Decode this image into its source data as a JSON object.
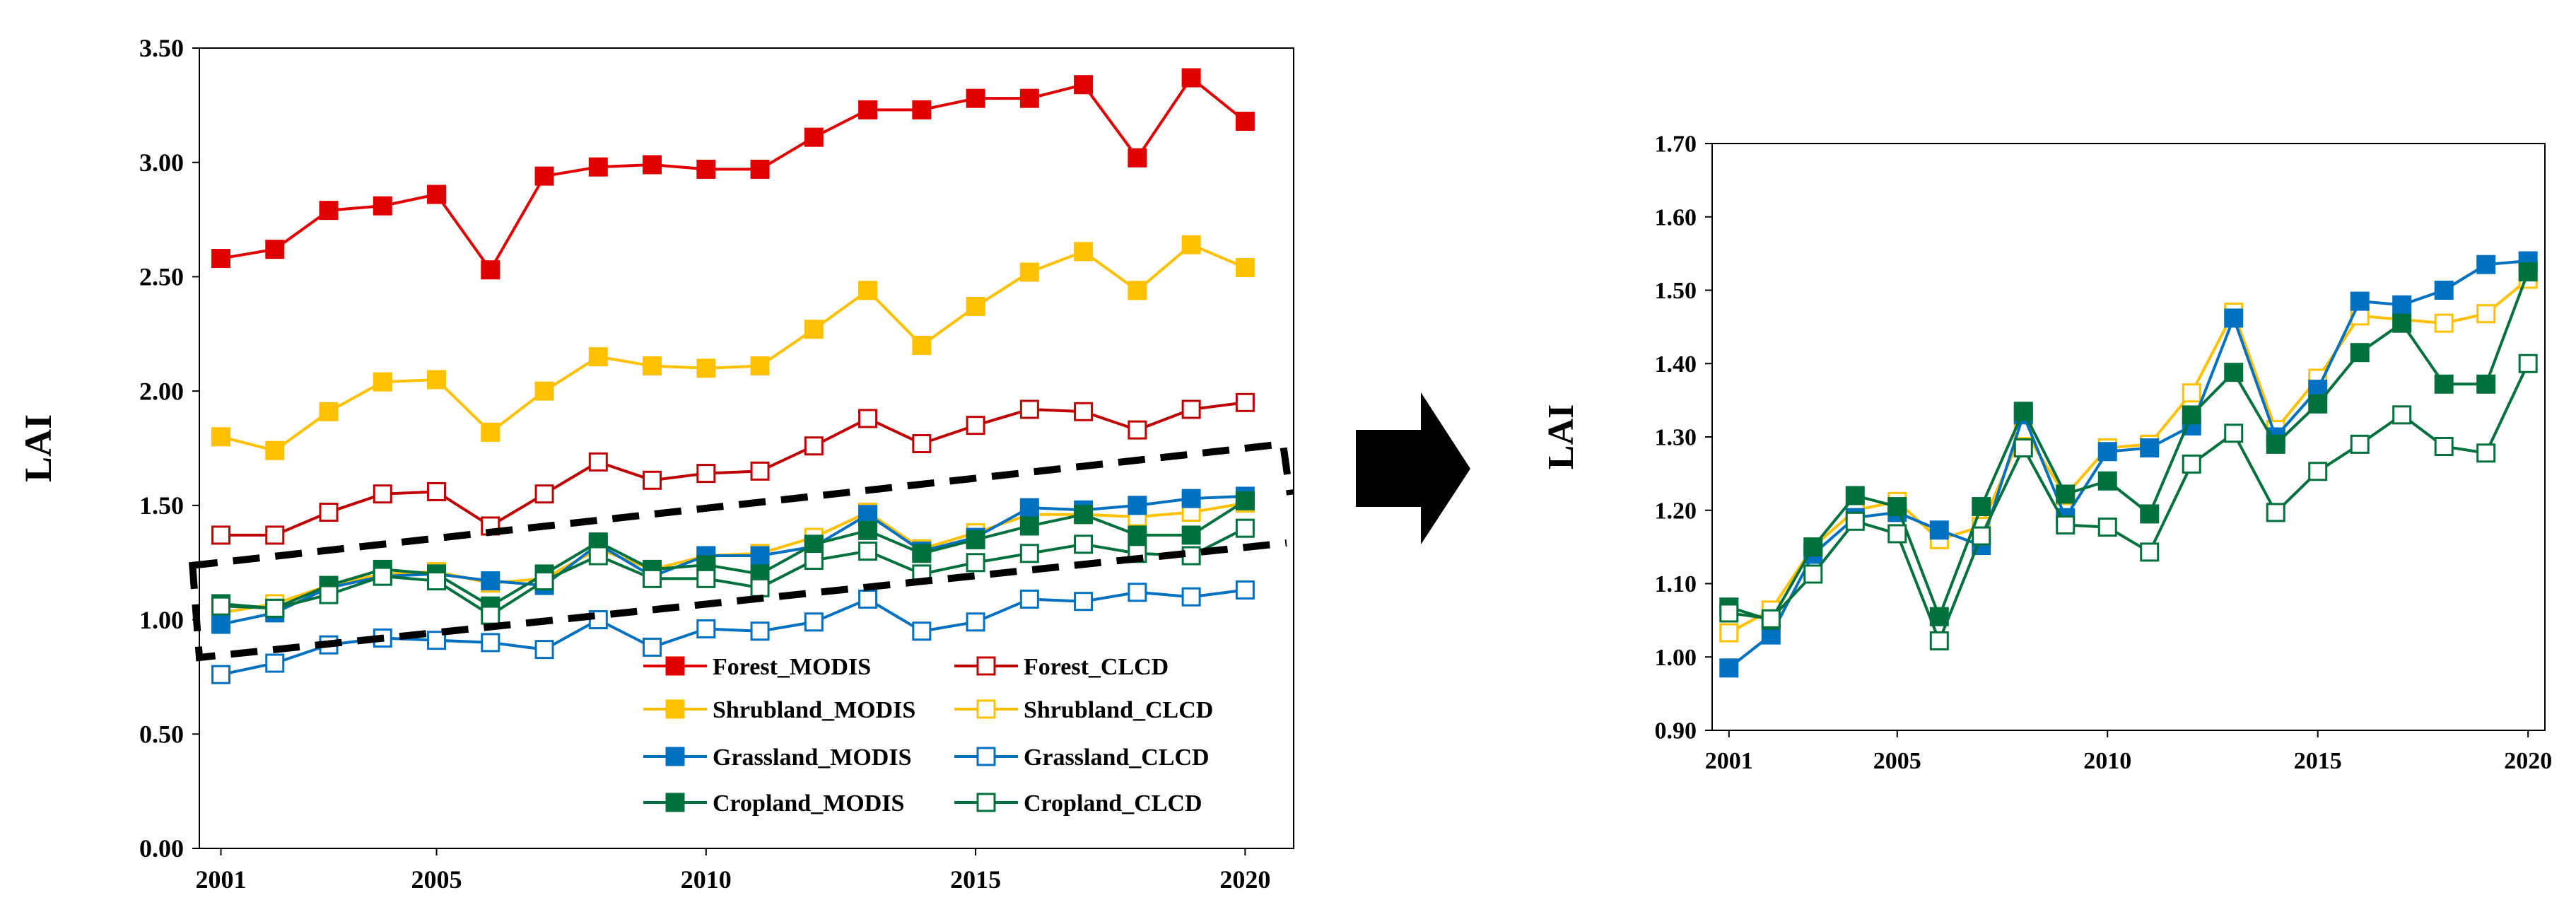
{
  "arrow": "right-arrow-icon",
  "chart_data": [
    {
      "type": "line",
      "title": "",
      "xlabel": "",
      "ylabel": "LAI",
      "x": [
        2001,
        2002,
        2003,
        2004,
        2005,
        2006,
        2007,
        2008,
        2009,
        2010,
        2011,
        2012,
        2013,
        2014,
        2015,
        2016,
        2017,
        2018,
        2019,
        2020
      ],
      "xticks": [
        "2001",
        "2005",
        "2010",
        "2015",
        "2020"
      ],
      "yticks": [
        "0.00",
        "0.50",
        "1.00",
        "1.50",
        "2.00",
        "2.50",
        "3.00",
        "3.50"
      ],
      "ylim": [
        0,
        3.5
      ],
      "xlim": [
        2000.6,
        2020.9
      ],
      "legend_position": "lower-right",
      "grid": false,
      "series": [
        {
          "name": "Forest_MODIS",
          "color": "#e00000",
          "filled": true,
          "values": [
            2.58,
            2.62,
            2.79,
            2.81,
            2.86,
            2.53,
            2.94,
            2.98,
            2.99,
            2.97,
            2.97,
            3.11,
            3.23,
            3.23,
            3.28,
            3.28,
            3.34,
            3.02,
            3.37,
            3.18
          ]
        },
        {
          "name": "Forest_CLCD",
          "color": "#c00000",
          "filled": false,
          "values": [
            1.37,
            1.37,
            1.47,
            1.55,
            1.56,
            1.41,
            1.55,
            1.69,
            1.61,
            1.64,
            1.65,
            1.76,
            1.88,
            1.77,
            1.85,
            1.92,
            1.91,
            1.83,
            1.92,
            1.95
          ]
        },
        {
          "name": "Shrubland_MODIS",
          "color": "#ffc000",
          "filled": true,
          "values": [
            1.8,
            1.74,
            1.91,
            2.04,
            2.05,
            1.82,
            2.0,
            2.15,
            2.11,
            2.1,
            2.11,
            2.27,
            2.44,
            2.2,
            2.37,
            2.52,
            2.61,
            2.44,
            2.64,
            2.54
          ]
        },
        {
          "name": "Shrubland_CLCD",
          "color": "#ffc000",
          "filled": false,
          "values": [
            1.03,
            1.07,
            1.15,
            1.2,
            1.21,
            1.16,
            1.18,
            1.31,
            1.22,
            1.28,
            1.29,
            1.36,
            1.47,
            1.31,
            1.38,
            1.46,
            1.46,
            1.45,
            1.47,
            1.51
          ]
        },
        {
          "name": "Grassland_MODIS",
          "color": "#0070c0",
          "filled": true,
          "values": [
            0.98,
            1.03,
            1.14,
            1.19,
            1.2,
            1.17,
            1.15,
            1.33,
            1.19,
            1.28,
            1.28,
            1.32,
            1.46,
            1.3,
            1.36,
            1.49,
            1.48,
            1.5,
            1.53,
            1.54
          ]
        },
        {
          "name": "Grassland_CLCD",
          "color": "#0070c0",
          "filled": false,
          "values": [
            0.76,
            0.81,
            0.89,
            0.92,
            0.91,
            0.9,
            0.87,
            1.0,
            0.88,
            0.96,
            0.95,
            0.99,
            1.09,
            0.95,
            0.99,
            1.09,
            1.08,
            1.12,
            1.1,
            1.13
          ]
        },
        {
          "name": "Cropland_MODIS",
          "color": "#00703c",
          "filled": true,
          "values": [
            1.07,
            1.05,
            1.15,
            1.22,
            1.2,
            1.06,
            1.2,
            1.34,
            1.22,
            1.24,
            1.2,
            1.33,
            1.39,
            1.29,
            1.35,
            1.41,
            1.46,
            1.37,
            1.37,
            1.52
          ]
        },
        {
          "name": "Cropland_CLCD",
          "color": "#00703c",
          "filled": false,
          "values": [
            1.06,
            1.05,
            1.11,
            1.19,
            1.17,
            1.02,
            1.17,
            1.28,
            1.18,
            1.18,
            1.14,
            1.26,
            1.3,
            1.2,
            1.25,
            1.29,
            1.33,
            1.29,
            1.28,
            1.4
          ]
        }
      ]
    },
    {
      "type": "line",
      "title": "",
      "xlabel": "",
      "ylabel": "LAI",
      "x": [
        2001,
        2002,
        2003,
        2004,
        2005,
        2006,
        2007,
        2008,
        2009,
        2010,
        2011,
        2012,
        2013,
        2014,
        2015,
        2016,
        2017,
        2018,
        2019,
        2020
      ],
      "xticks": [
        "2001",
        "2005",
        "2010",
        "2015",
        "2020"
      ],
      "yticks": [
        "0.90",
        "1.00",
        "1.10",
        "1.20",
        "1.30",
        "1.40",
        "1.50",
        "1.60",
        "1.70"
      ],
      "ylim": [
        0.9,
        1.7
      ],
      "xlim": [
        2000.6,
        2020.4
      ],
      "grid": false,
      "series": [
        {
          "name": "Shrubland_CLCD",
          "color": "#ffc000",
          "filled": false,
          "values": [
            1.033,
            1.064,
            1.15,
            1.2,
            1.212,
            1.16,
            1.178,
            1.31,
            1.22,
            1.285,
            1.29,
            1.36,
            1.47,
            1.31,
            1.38,
            1.465,
            1.46,
            1.455,
            1.468,
            1.515
          ]
        },
        {
          "name": "Grassland_MODIS",
          "color": "#0070c0",
          "filled": true,
          "values": [
            0.985,
            1.03,
            1.14,
            1.19,
            1.197,
            1.173,
            1.152,
            1.33,
            1.19,
            1.28,
            1.285,
            1.315,
            1.462,
            1.3,
            1.365,
            1.485,
            1.48,
            1.5,
            1.535,
            1.54
          ]
        },
        {
          "name": "Cropland_MODIS",
          "color": "#00703c",
          "filled": true,
          "values": [
            1.068,
            1.05,
            1.15,
            1.22,
            1.205,
            1.055,
            1.205,
            1.335,
            1.222,
            1.24,
            1.195,
            1.33,
            1.388,
            1.29,
            1.345,
            1.415,
            1.455,
            1.372,
            1.372,
            1.525
          ]
        },
        {
          "name": "Cropland_CLCD",
          "color": "#00703c",
          "filled": false,
          "values": [
            1.06,
            1.052,
            1.113,
            1.185,
            1.168,
            1.022,
            1.165,
            1.285,
            1.18,
            1.177,
            1.143,
            1.263,
            1.305,
            1.197,
            1.253,
            1.29,
            1.33,
            1.287,
            1.278,
            1.4
          ]
        }
      ]
    }
  ]
}
